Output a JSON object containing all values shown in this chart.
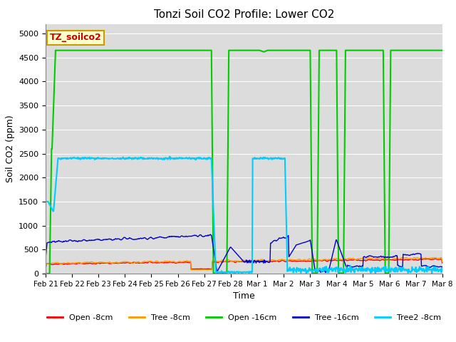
{
  "title": "Tonzi Soil CO2 Profile: Lower CO2",
  "xlabel": "Time",
  "ylabel": "Soil CO2 (ppm)",
  "ylim": [
    0,
    5200
  ],
  "yticks": [
    0,
    500,
    1000,
    1500,
    2000,
    2500,
    3000,
    3500,
    4000,
    4500,
    5000
  ],
  "legend_label": "TZ_soilco2",
  "legend_bg": "#ffffcc",
  "legend_edge": "#cc9900",
  "colors": {
    "open_8cm": "#ff0000",
    "tree_8cm": "#ff9900",
    "open_16cm": "#00cc00",
    "tree_16cm": "#0000cc",
    "tree2_8cm": "#00ccff"
  },
  "bg_color": "#dcdcdc",
  "line_labels": [
    "Open -8cm",
    "Tree -8cm",
    "Open -16cm",
    "Tree -16cm",
    "Tree2 -8cm"
  ],
  "xtick_labels": [
    "Feb 21",
    "Feb 22",
    "Feb 23",
    "Feb 24",
    "Feb 25",
    "Feb 26",
    "Feb 27",
    "Feb 28",
    "Mar 1",
    "Mar 2",
    "Mar 3",
    "Mar 4",
    "Mar 5",
    "Mar 6",
    "Mar 7",
    "Mar 8"
  ]
}
